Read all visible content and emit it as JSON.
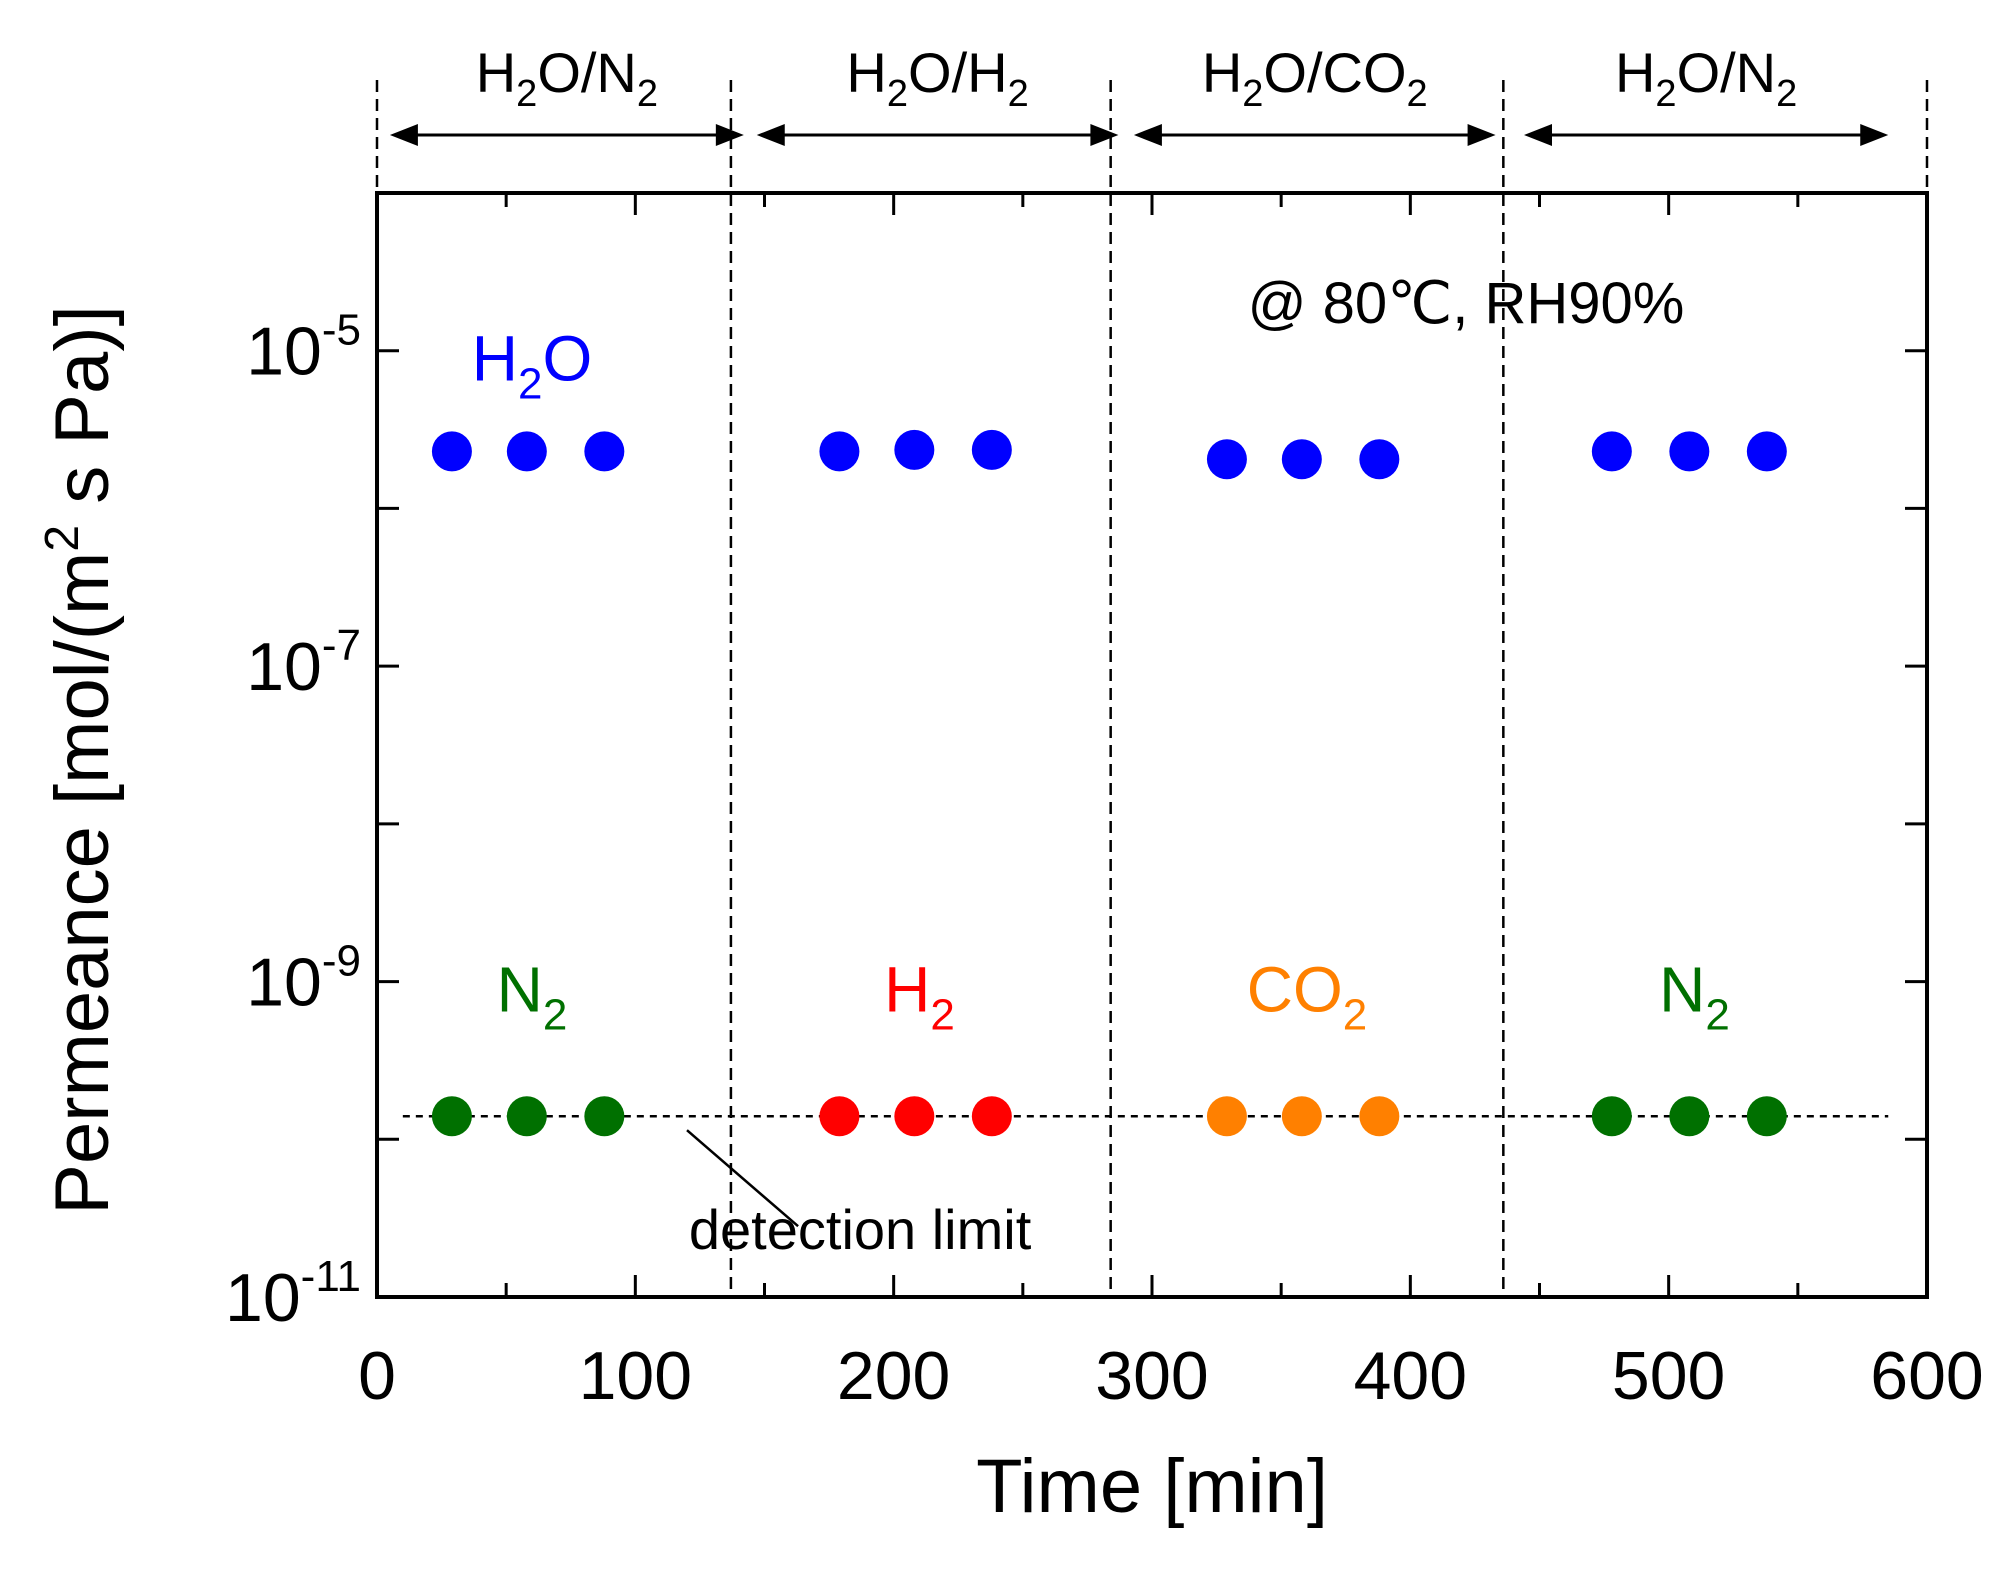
{
  "chart_data": {
    "type": "scatter",
    "title": "",
    "xlabel": "Time [min]",
    "ylabel": "Permeance [mol/(m² s Pa)]",
    "ylabel_parts": {
      "pre": "Permeance [mol/(m",
      "sup": "2",
      "post": " s Pa)]"
    },
    "xlim": [
      0,
      600
    ],
    "yscale": "log",
    "ylim": [
      1e-11,
      0.0001
    ],
    "xticks": [
      0,
      100,
      200,
      300,
      400,
      500,
      600
    ],
    "yticks_labeled": [
      {
        "value": 1e-05,
        "base": "10",
        "exp": "-5"
      },
      {
        "value": 1e-07,
        "base": "10",
        "exp": "-7"
      },
      {
        "value": 1e-09,
        "base": "10",
        "exp": "-9"
      },
      {
        "value": 1e-11,
        "base": "10",
        "exp": "-11"
      }
    ],
    "yticks_minor": [
      1e-06,
      1e-08,
      1e-10
    ],
    "xticks_minor": [
      50,
      150,
      250,
      350,
      450,
      550
    ],
    "condition": "@ 80℃, RH90%",
    "segments": [
      {
        "label": {
          "parts": [
            [
              "H",
              false
            ],
            [
              "2",
              true
            ],
            [
              "O/N",
              false
            ],
            [
              "2",
              true
            ]
          ]
        },
        "start": 5,
        "end": 142
      },
      {
        "label": {
          "parts": [
            [
              "H",
              false
            ],
            [
              "2",
              true
            ],
            [
              "O/H",
              false
            ],
            [
              "2",
              true
            ]
          ]
        },
        "start": 147,
        "end": 287
      },
      {
        "label": {
          "parts": [
            [
              "H",
              false
            ],
            [
              "2",
              true
            ],
            [
              "O/CO",
              false
            ],
            [
              "2",
              true
            ]
          ]
        },
        "start": 293,
        "end": 433
      },
      {
        "label": {
          "parts": [
            [
              "H",
              false
            ],
            [
              "2",
              true
            ],
            [
              "O/N",
              false
            ],
            [
              "2",
              true
            ]
          ]
        },
        "start": 444,
        "end": 585
      }
    ],
    "dividers": [
      0,
      137,
      284,
      436,
      600
    ],
    "detection_limit": {
      "value": 1.4e-10,
      "label": "detection limit",
      "x_start": 10,
      "x_end": 585
    },
    "series": [
      {
        "name": "H2O",
        "species": "H2O",
        "group": 1,
        "color": "#0000ff",
        "x": [
          29,
          58,
          88
        ],
        "y": [
          2.3e-06,
          2.3e-06,
          2.3e-06
        ]
      },
      {
        "name": "N2",
        "species": "N2",
        "group": 1,
        "color": "#007000",
        "x": [
          29,
          58,
          88
        ],
        "y": [
          1.4e-10,
          1.4e-10,
          1.4e-10
        ]
      },
      {
        "name": "H2O",
        "species": "H2O",
        "group": 2,
        "color": "#0000ff",
        "x": [
          179,
          208,
          238
        ],
        "y": [
          2.3e-06,
          2.35e-06,
          2.35e-06
        ]
      },
      {
        "name": "H2",
        "species": "H2",
        "group": 2,
        "color": "#ff0000",
        "x": [
          179,
          208,
          238
        ],
        "y": [
          1.4e-10,
          1.4e-10,
          1.4e-10
        ]
      },
      {
        "name": "H2O",
        "species": "H2O",
        "group": 3,
        "color": "#0000ff",
        "x": [
          329,
          358,
          388
        ],
        "y": [
          2.05e-06,
          2.05e-06,
          2.05e-06
        ]
      },
      {
        "name": "CO2",
        "species": "CO2",
        "group": 3,
        "color": "#ff8000",
        "x": [
          329,
          358,
          388
        ],
        "y": [
          1.4e-10,
          1.4e-10,
          1.4e-10
        ]
      },
      {
        "name": "H2O",
        "species": "H2O",
        "group": 4,
        "color": "#0000ff",
        "x": [
          478,
          508,
          538
        ],
        "y": [
          2.3e-06,
          2.3e-06,
          2.3e-06
        ]
      },
      {
        "name": "N2",
        "species": "N2",
        "group": 4,
        "color": "#007000",
        "x": [
          478,
          508,
          538
        ],
        "y": [
          1.4e-10,
          1.4e-10,
          1.4e-10
        ]
      }
    ],
    "annotations": [
      {
        "parts": [
          [
            "H",
            false
          ],
          [
            "2",
            true
          ],
          [
            "O",
            false
          ]
        ],
        "color": "#0000ff",
        "x": 60,
        "y": 1e-05
      },
      {
        "parts": [
          [
            "N",
            false
          ],
          [
            "2",
            true
          ]
        ],
        "color": "#007000",
        "x": 60,
        "y": 1e-09
      },
      {
        "parts": [
          [
            "H",
            false
          ],
          [
            "2",
            true
          ]
        ],
        "color": "#ff0000",
        "x": 210,
        "y": 1e-09
      },
      {
        "parts": [
          [
            "CO",
            false
          ],
          [
            "2",
            true
          ]
        ],
        "color": "#ff8000",
        "x": 360,
        "y": 1e-09
      },
      {
        "parts": [
          [
            "N",
            false
          ],
          [
            "2",
            true
          ]
        ],
        "color": "#007000",
        "x": 510,
        "y": 1e-09
      }
    ]
  }
}
